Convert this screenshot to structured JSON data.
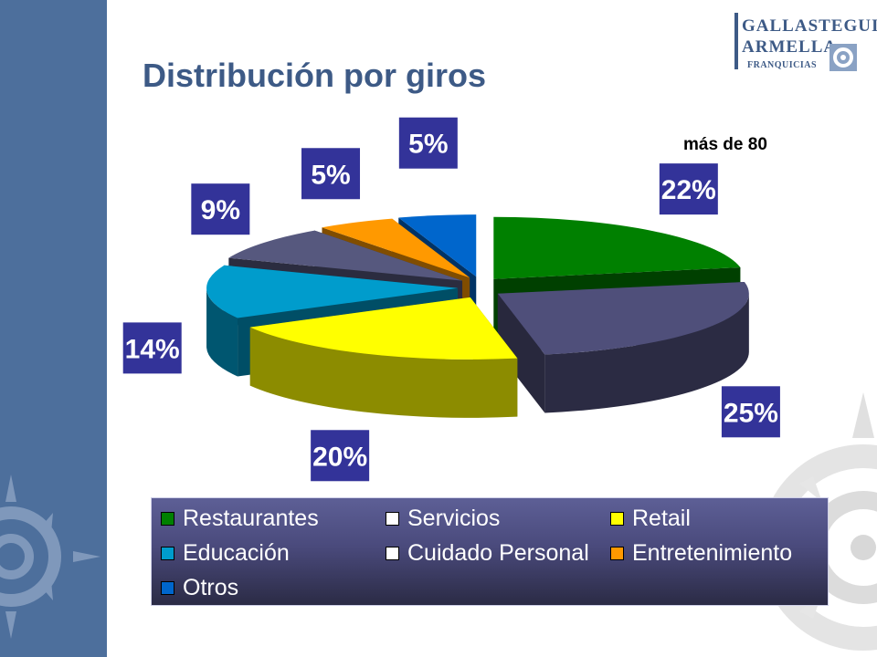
{
  "slide": {
    "title": "Distribución por giros",
    "note": "más de 80",
    "logo": {
      "line1": "GALLASTEGUI",
      "line2": "ARMELLA",
      "line3": "FRANQUICIAS"
    }
  },
  "colors": {
    "band": "#4d6f9c",
    "title": "#3d5a86",
    "label_box": "#333399"
  },
  "chart_data": {
    "type": "pie",
    "style": "3d-exploded",
    "legend_position": "bottom",
    "categories": [
      "Restaurantes",
      "Servicios",
      "Retail",
      "Educación",
      "Cuidado Personal",
      "Entretenimiento",
      "Otros"
    ],
    "values": [
      22,
      25,
      20,
      14,
      9,
      5,
      5
    ],
    "labels": [
      "22%",
      "25%",
      "20%",
      "14%",
      "9%",
      "5%",
      "5%"
    ],
    "slice_colors": [
      "#008000",
      "#4f4f7a",
      "#ffff00",
      "#009ccc",
      "#56587e",
      "#ff9900",
      "#0066cc"
    ],
    "legend_swatch_colors": [
      "#008000",
      "#ffffff",
      "#ffff00",
      "#009ccc",
      "#ffffff",
      "#ff9900",
      "#0066cc"
    ]
  }
}
